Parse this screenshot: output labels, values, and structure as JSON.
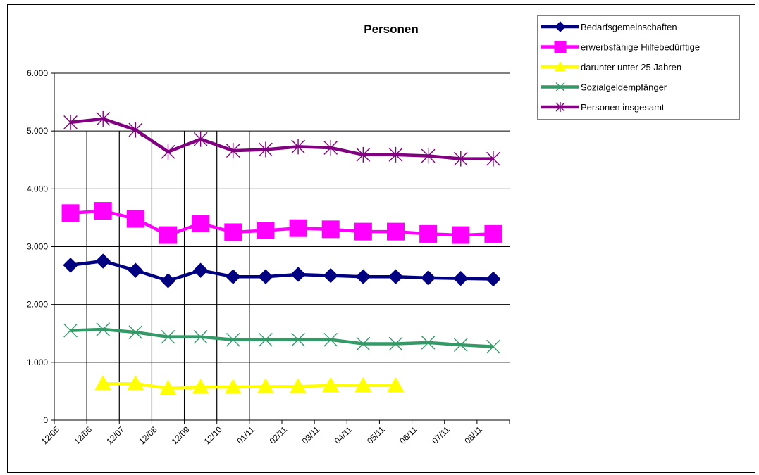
{
  "chart_data": {
    "type": "line",
    "title": "Personen",
    "xlabel": "",
    "ylabel": "",
    "x_ticks": [
      "12/05",
      "12/06",
      "12/07",
      "12/08",
      "12/09",
      "12/10",
      "01/11",
      "02/11",
      "03/11",
      "04/11",
      "05/11",
      "06/11",
      "07/11",
      "08/11"
    ],
    "y_ticks": [
      "0",
      "1.000",
      "2.000",
      "3.000",
      "4.000",
      "5.000",
      "6.000"
    ],
    "ylim": [
      0,
      6000
    ],
    "grid": "horizontal",
    "legend_position": "top-right",
    "series": [
      {
        "name": "Bedarfsgemeinschaften",
        "color": "#000080",
        "marker": "diamond",
        "values": [
          2680,
          2750,
          2590,
          2410,
          2590,
          2480,
          2480,
          2520,
          2500,
          2480,
          2480,
          2460,
          2450,
          2440
        ]
      },
      {
        "name": "erwerbsfähige Hilfebedürftige",
        "color": "#ff00ff",
        "marker": "square",
        "values": [
          3580,
          3620,
          3480,
          3200,
          3400,
          3250,
          3280,
          3320,
          3300,
          3260,
          3260,
          3220,
          3200,
          3220
        ]
      },
      {
        "name": "darunter unter 25 Jahren",
        "color": "#ffff00",
        "marker": "triangle",
        "values": [
          null,
          630,
          630,
          550,
          570,
          570,
          580,
          580,
          600,
          600,
          600,
          null,
          null,
          null
        ]
      },
      {
        "name": "Sozialgeldempfänger",
        "color": "#339966",
        "marker": "x",
        "values": [
          1550,
          1570,
          1520,
          1440,
          1440,
          1390,
          1390,
          1390,
          1390,
          1320,
          1320,
          1340,
          1300,
          1270
        ]
      },
      {
        "name": "Personen insgesamt",
        "color": "#800080",
        "marker": "star",
        "values": [
          5150,
          5210,
          5020,
          4640,
          4860,
          4660,
          4680,
          4730,
          4710,
          4590,
          4590,
          4570,
          4520,
          4520
        ]
      }
    ]
  }
}
